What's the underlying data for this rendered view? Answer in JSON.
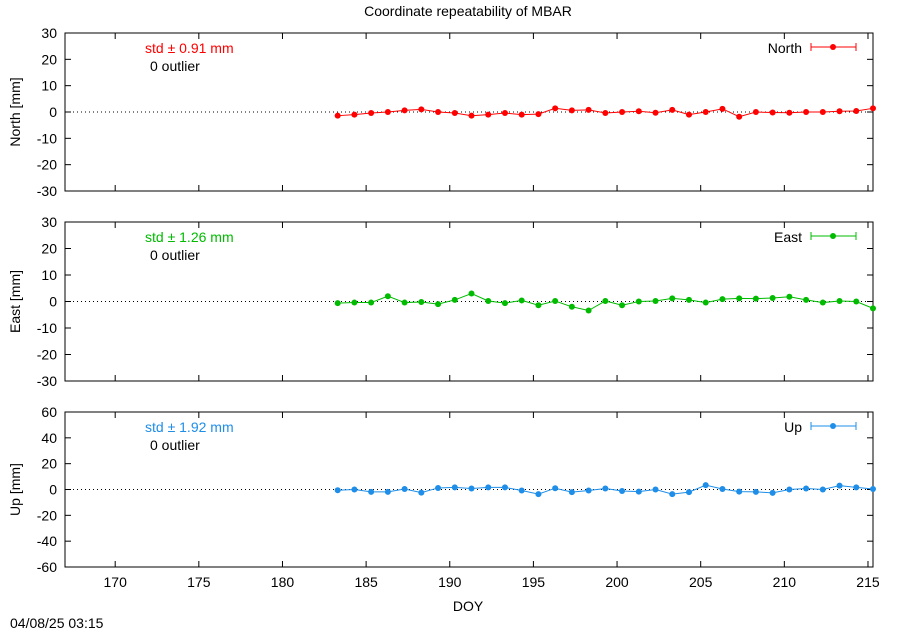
{
  "title": "Coordinate repeatability of MBAR",
  "timestamp": "04/08/25 03:15",
  "xlabel": "DOY",
  "xlim": [
    167,
    215.3
  ],
  "xticks": [
    170,
    175,
    180,
    185,
    190,
    195,
    200,
    205,
    210,
    215
  ],
  "chart_data": [
    {
      "type": "line",
      "panel": "north",
      "ylabel": "North [mm]",
      "ylim": [
        -30,
        30
      ],
      "yticks": [
        30,
        20,
        10,
        0,
        -10,
        -20,
        -30
      ],
      "color": "#ff0000",
      "series": [
        {
          "name": "North",
          "x": [
            183.3,
            184.3,
            185.3,
            186.3,
            187.3,
            188.3,
            189.3,
            190.3,
            191.3,
            192.3,
            193.3,
            194.3,
            195.3,
            196.3,
            197.3,
            198.3,
            199.3,
            200.3,
            201.3,
            202.3,
            203.3,
            204.3,
            205.3,
            206.3,
            207.3,
            208.3,
            209.3,
            210.3,
            211.3,
            212.3,
            213.3,
            214.3,
            215.3
          ],
          "y": [
            -1.4,
            -1.0,
            -0.4,
            0.0,
            0.6,
            1.0,
            0.0,
            -0.4,
            -1.4,
            -1.0,
            -0.4,
            -1.0,
            -0.8,
            1.4,
            0.6,
            0.8,
            -0.4,
            0.0,
            0.3,
            -0.3,
            0.8,
            -1.0,
            0.0,
            1.2,
            -1.8,
            0.0,
            -0.2,
            -0.3,
            0.0,
            0.0,
            0.3,
            0.4,
            1.4
          ]
        }
      ],
      "annotation_std": "std ± 0.91 mm",
      "annotation_outlier": "0 outlier"
    },
    {
      "type": "line",
      "panel": "east",
      "ylabel": "East [mm]",
      "ylim": [
        -30,
        30
      ],
      "yticks": [
        30,
        20,
        10,
        0,
        -10,
        -20,
        -30
      ],
      "color": "#00bb00",
      "series": [
        {
          "name": "East",
          "x": [
            183.3,
            184.3,
            185.3,
            186.3,
            187.3,
            188.3,
            189.3,
            190.3,
            191.3,
            192.3,
            193.3,
            194.3,
            195.3,
            196.3,
            197.3,
            198.3,
            199.3,
            200.3,
            201.3,
            202.3,
            203.3,
            204.3,
            205.3,
            206.3,
            207.3,
            208.3,
            209.3,
            210.3,
            211.3,
            212.3,
            213.3,
            214.3,
            215.3
          ],
          "y": [
            -0.6,
            -0.4,
            -0.4,
            2.0,
            -0.4,
            -0.2,
            -1.0,
            0.6,
            3.0,
            0.2,
            -0.6,
            0.4,
            -1.4,
            0.2,
            -2.0,
            -3.4,
            0.2,
            -1.4,
            0.0,
            0.2,
            1.2,
            0.6,
            -0.4,
            0.9,
            1.2,
            1.1,
            1.3,
            1.8,
            0.6,
            -0.4,
            0.2,
            0.0,
            -2.6
          ]
        }
      ],
      "annotation_std": "std ± 1.26 mm",
      "annotation_outlier": "0 outlier"
    },
    {
      "type": "line",
      "panel": "up",
      "ylabel": "Up [mm]",
      "ylim": [
        -60,
        60
      ],
      "yticks": [
        60,
        40,
        20,
        0,
        -20,
        -40,
        -60
      ],
      "color": "#1e8ee8",
      "series": [
        {
          "name": "Up",
          "x": [
            183.3,
            184.3,
            185.3,
            186.3,
            187.3,
            188.3,
            189.3,
            190.3,
            191.3,
            192.3,
            193.3,
            194.3,
            195.3,
            196.3,
            197.3,
            198.3,
            199.3,
            200.3,
            201.3,
            202.3,
            203.3,
            204.3,
            205.3,
            206.3,
            207.3,
            208.3,
            209.3,
            210.3,
            211.3,
            212.3,
            213.3,
            214.3,
            215.3
          ],
          "y": [
            -0.6,
            0.0,
            -1.8,
            -1.8,
            0.4,
            -2.4,
            1.2,
            1.6,
            0.8,
            1.6,
            1.6,
            -0.8,
            -3.6,
            1.0,
            -2.0,
            -0.8,
            0.8,
            -1.2,
            -1.6,
            0.0,
            -3.6,
            -2.0,
            3.4,
            0.4,
            -1.6,
            -1.8,
            -2.6,
            0.0,
            0.8,
            0.0,
            3.0,
            1.6,
            0.4
          ]
        }
      ],
      "annotation_std": "std ± 1.92 mm",
      "annotation_outlier": "0 outlier"
    }
  ]
}
